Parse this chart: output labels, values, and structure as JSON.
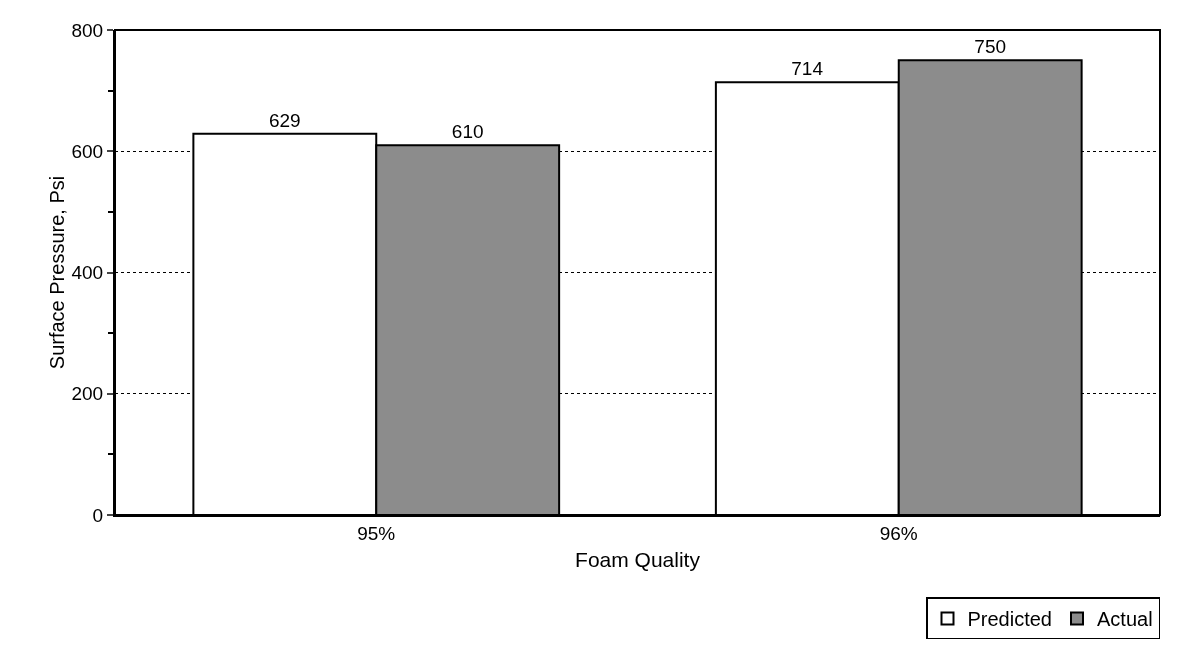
{
  "chart_data": {
    "type": "bar",
    "xlabel": "Foam Quality",
    "ylabel": "Surface Pressure, Psi",
    "categories": [
      "95%",
      "96%"
    ],
    "series": [
      {
        "name": "Predicted",
        "color": "#ffffff",
        "values": [
          629,
          714
        ]
      },
      {
        "name": "Actual",
        "color": "#8c8c8c",
        "values": [
          610,
          750
        ]
      }
    ],
    "ylim": [
      0,
      800
    ],
    "yticks": [
      0,
      200,
      400,
      600,
      800
    ],
    "grid": "y",
    "legend": "bottom right",
    "data_labels": true
  }
}
